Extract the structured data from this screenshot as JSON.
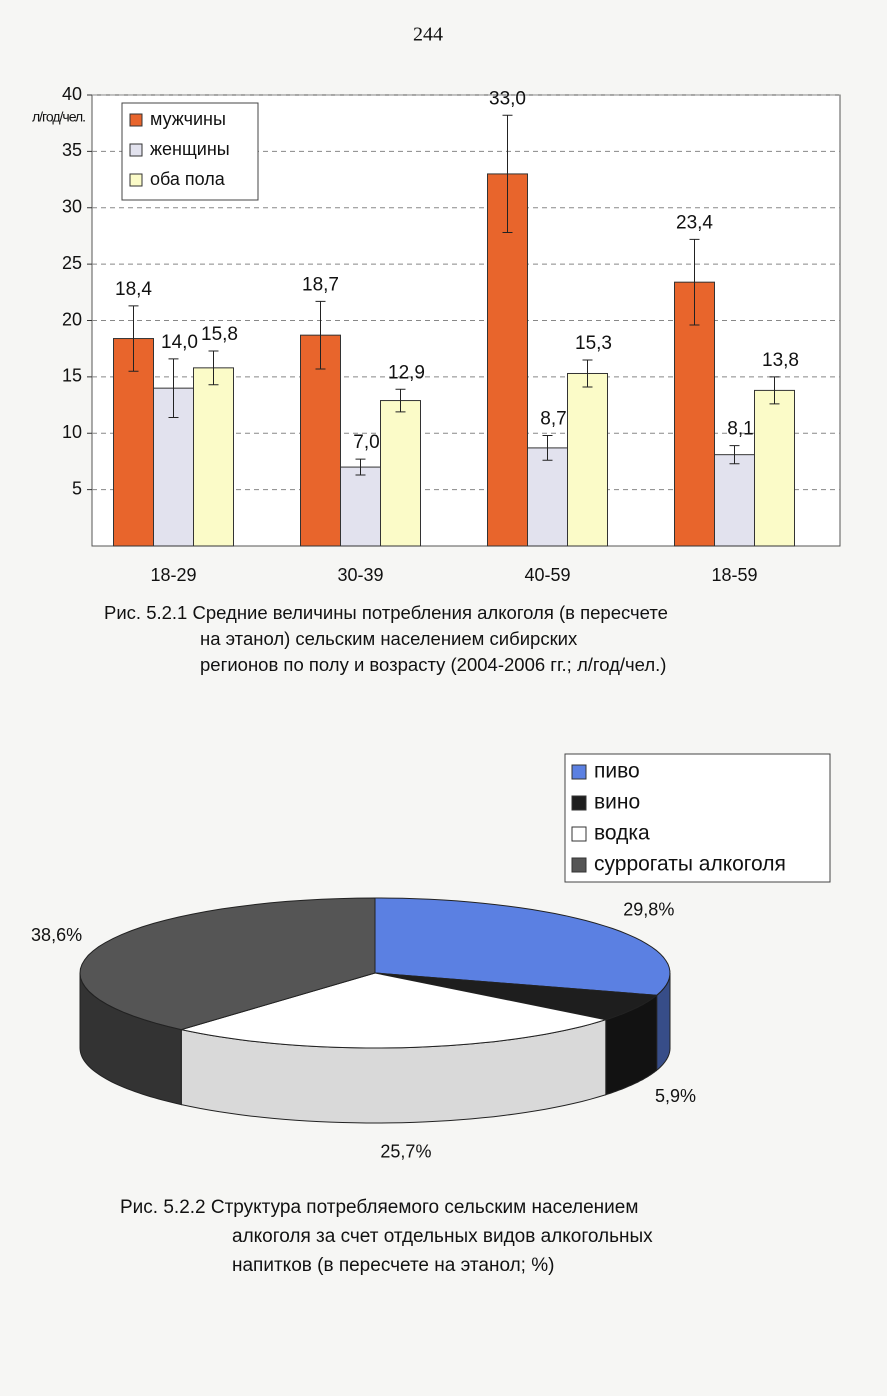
{
  "page_number": "244",
  "chart_data": [
    {
      "type": "bar",
      "y_label": "л/год/чел.",
      "categories": [
        "18-29",
        "30-39",
        "40-59",
        "18-59"
      ],
      "series": [
        {
          "name": "мужчины",
          "color": "#e8652c",
          "values": [
            18.4,
            18.7,
            33.0,
            23.4
          ],
          "value_labels": [
            "18,4",
            "18,7",
            "33,0",
            "23,4"
          ],
          "errors": [
            2.9,
            3.0,
            5.2,
            3.8
          ]
        },
        {
          "name": "женщины",
          "color": "#e2e2ee",
          "values": [
            14.0,
            7.0,
            8.7,
            8.1
          ],
          "value_labels": [
            "14,0",
            "7,0",
            "8,7",
            "8,1"
          ],
          "errors": [
            2.6,
            0.7,
            1.1,
            0.8
          ]
        },
        {
          "name": "оба пола",
          "color": "#fbfbc8",
          "values": [
            15.8,
            12.9,
            15.3,
            13.8
          ],
          "value_labels": [
            "15,8",
            "12,9",
            "15,3",
            "13,8"
          ],
          "errors": [
            1.5,
            1.0,
            1.2,
            1.2
          ]
        }
      ],
      "ylim": [
        0,
        40
      ],
      "yticks": [
        5,
        10,
        15,
        20,
        25,
        30,
        35,
        40
      ],
      "grid": true,
      "legend": "top-left",
      "caption": [
        "Рис. 5.2.1 Средние величины потребления алкоголя (в пересчете",
        "на этанол) сельским населением сибирских",
        "регионов по полу и возрасту (2004-2006 гг.; л/год/чел.)"
      ]
    },
    {
      "type": "pie",
      "categories": [
        "пиво",
        "вино",
        "водка",
        "суррогаты алкоголя"
      ],
      "values": [
        29.8,
        5.9,
        25.7,
        38.6
      ],
      "value_labels": [
        "29,8%",
        "5,9%",
        "25,7%",
        "38,6%"
      ],
      "colors": [
        "#5b80e2",
        "#1e1e1e",
        "#ffffff",
        "#555555"
      ],
      "legend": "top-right",
      "caption": [
        "Рис. 5.2.2 Структура потребляемого сельским населением",
        "алкоголя за счет отдельных видов алкогольных",
        "напитков (в пересчете на этанол; %)"
      ]
    }
  ]
}
